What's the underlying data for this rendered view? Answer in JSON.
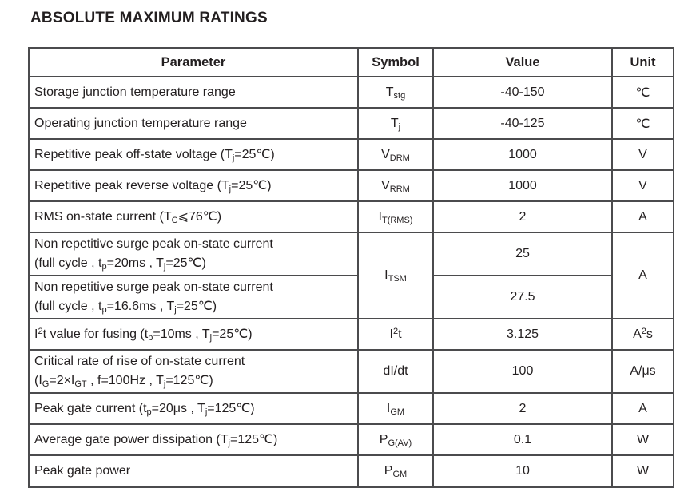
{
  "page": {
    "title": "ABSOLUTE MAXIMUM RATINGS"
  },
  "colors": {
    "text": "#231f20",
    "border": "#4b4b4d",
    "background": "#ffffff"
  },
  "table": {
    "headers": [
      "Parameter",
      "Symbol",
      "Value",
      "Unit"
    ],
    "rows": [
      {
        "param": [
          {
            "t": "Storage junction temperature range"
          }
        ],
        "symbol": [
          {
            "t": "T"
          },
          {
            "t": "stg",
            "s": "sub"
          }
        ],
        "value": [
          {
            "t": "-40-150"
          }
        ],
        "unit": [
          {
            "t": "℃"
          }
        ]
      },
      {
        "param": [
          {
            "t": "Operating junction temperature range"
          }
        ],
        "symbol": [
          {
            "t": "T"
          },
          {
            "t": "j",
            "s": "sub"
          }
        ],
        "value": [
          {
            "t": "-40-125"
          }
        ],
        "unit": [
          {
            "t": "℃"
          }
        ]
      },
      {
        "param": [
          {
            "t": "Repetitive peak off-state voltage (T"
          },
          {
            "t": "j",
            "s": "sub"
          },
          {
            "t": "=25℃)"
          }
        ],
        "symbol": [
          {
            "t": "V"
          },
          {
            "t": "DRM",
            "s": "sub"
          }
        ],
        "value": [
          {
            "t": "1000"
          }
        ],
        "unit": [
          {
            "t": "V"
          }
        ]
      },
      {
        "param": [
          {
            "t": "Repetitive peak reverse voltage (T"
          },
          {
            "t": "j",
            "s": "sub"
          },
          {
            "t": "=25℃)"
          }
        ],
        "symbol": [
          {
            "t": "V"
          },
          {
            "t": "RRM",
            "s": "sub"
          }
        ],
        "value": [
          {
            "t": "1000"
          }
        ],
        "unit": [
          {
            "t": "V"
          }
        ]
      },
      {
        "param": [
          {
            "t": "RMS on-state current (T"
          },
          {
            "t": "C",
            "s": "sub"
          },
          {
            "t": "⩽76℃)"
          }
        ],
        "symbol": [
          {
            "t": "I"
          },
          {
            "t": "T(RMS)",
            "s": "sub"
          }
        ],
        "value": [
          {
            "t": "2"
          }
        ],
        "unit": [
          {
            "t": "A"
          }
        ]
      },
      {
        "param": [
          {
            "t": "Non repetitive surge peak on-state current"
          },
          {
            "br": true
          },
          {
            "t": "(full cycle , t"
          },
          {
            "t": "p",
            "s": "sub"
          },
          {
            "t": "=20ms , T"
          },
          {
            "t": "j",
            "s": "sub"
          },
          {
            "t": "=25℃)"
          }
        ],
        "symbol": [
          {
            "t": "I"
          },
          {
            "t": "TSM",
            "s": "sub"
          }
        ],
        "value": [
          {
            "t": "25"
          }
        ],
        "unit": [
          {
            "t": "A"
          }
        ]
      },
      {
        "param": [
          {
            "t": "Non repetitive surge peak on-state current"
          },
          {
            "br": true
          },
          {
            "t": "(full cycle , t"
          },
          {
            "t": "p",
            "s": "sub"
          },
          {
            "t": "=16.6ms , T"
          },
          {
            "t": "j",
            "s": "sub"
          },
          {
            "t": "=25℃)"
          }
        ],
        "value": [
          {
            "t": "27.5"
          }
        ]
      },
      {
        "param": [
          {
            "t": "I"
          },
          {
            "t": "2",
            "s": "sup"
          },
          {
            "t": "t value for fusing (t"
          },
          {
            "t": "p",
            "s": "sub"
          },
          {
            "t": "=10ms , T"
          },
          {
            "t": "j",
            "s": "sub"
          },
          {
            "t": "=25℃)"
          }
        ],
        "symbol": [
          {
            "t": "I"
          },
          {
            "t": "2",
            "s": "sup"
          },
          {
            "t": "t"
          }
        ],
        "value": [
          {
            "t": "3.125"
          }
        ],
        "unit": [
          {
            "t": "A"
          },
          {
            "t": "2",
            "s": "sup"
          },
          {
            "t": "s"
          }
        ]
      },
      {
        "param": [
          {
            "t": "Critical rate of rise of on-state current"
          },
          {
            "br": true
          },
          {
            "t": "(I"
          },
          {
            "t": "G",
            "s": "sub"
          },
          {
            "t": "=2×I"
          },
          {
            "t": "GT",
            "s": "sub"
          },
          {
            "t": " , f=100Hz , T"
          },
          {
            "t": "j",
            "s": "sub"
          },
          {
            "t": "=125℃)"
          }
        ],
        "symbol": [
          {
            "t": "dI/dt"
          }
        ],
        "value": [
          {
            "t": "100"
          }
        ],
        "unit": [
          {
            "t": "A/μs"
          }
        ]
      },
      {
        "param": [
          {
            "t": "Peak gate current (t"
          },
          {
            "t": "p",
            "s": "sub"
          },
          {
            "t": "=20μs , T"
          },
          {
            "t": "j",
            "s": "sub"
          },
          {
            "t": "=125℃)"
          }
        ],
        "symbol": [
          {
            "t": "I"
          },
          {
            "t": "GM",
            "s": "sub"
          }
        ],
        "value": [
          {
            "t": "2"
          }
        ],
        "unit": [
          {
            "t": "A"
          }
        ]
      },
      {
        "param": [
          {
            "t": "Average gate power dissipation (T"
          },
          {
            "t": "j",
            "s": "sub"
          },
          {
            "t": "=125℃)"
          }
        ],
        "symbol": [
          {
            "t": "P"
          },
          {
            "t": "G(AV)",
            "s": "sub"
          }
        ],
        "value": [
          {
            "t": "0.1"
          }
        ],
        "unit": [
          {
            "t": "W"
          }
        ]
      },
      {
        "param": [
          {
            "t": "Peak gate power"
          }
        ],
        "symbol": [
          {
            "t": "P"
          },
          {
            "t": "GM",
            "s": "sub"
          }
        ],
        "value": [
          {
            "t": "10"
          }
        ],
        "unit": [
          {
            "t": "W"
          }
        ]
      }
    ]
  }
}
